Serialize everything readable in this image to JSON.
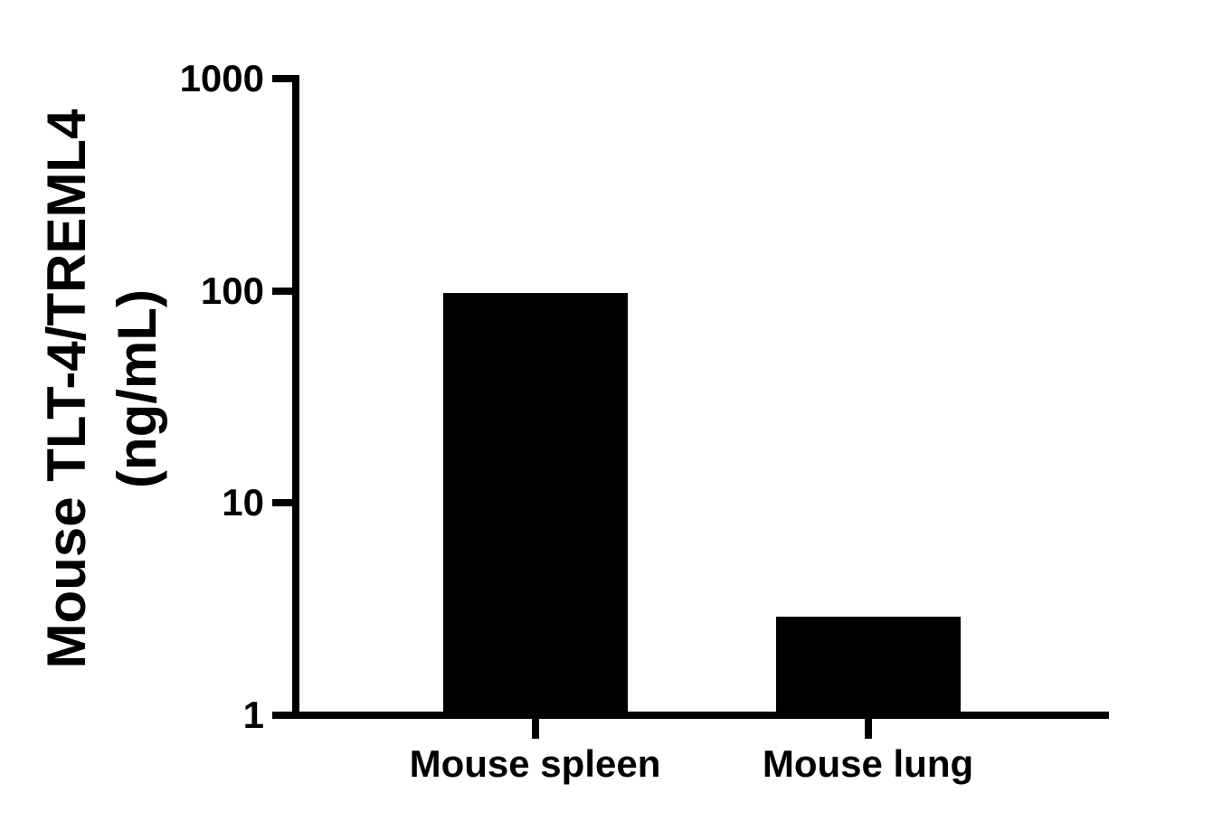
{
  "chart_data": {
    "type": "bar",
    "categories": [
      "Mouse spleen",
      "Mouse lung"
    ],
    "values": [
      97.9,
      2.9
    ],
    "ylabel_line1": "Mouse TLT-4/TREML4",
    "ylabel_line2": "(ng/mL)",
    "ylabel": "Mouse TLT-4/TREML4 (ng/mL)",
    "xlabel": "",
    "yscale": "log",
    "ylim": [
      1,
      1000
    ],
    "ytick_values": [
      1000,
      100,
      10,
      1
    ],
    "ytick_labels": [
      "1000",
      "100",
      "10",
      "1"
    ],
    "grid": false,
    "legend": false,
    "bar_color": "#000000",
    "axis_color": "#000000",
    "text_color": "#000000",
    "background_color": "#ffffff"
  }
}
